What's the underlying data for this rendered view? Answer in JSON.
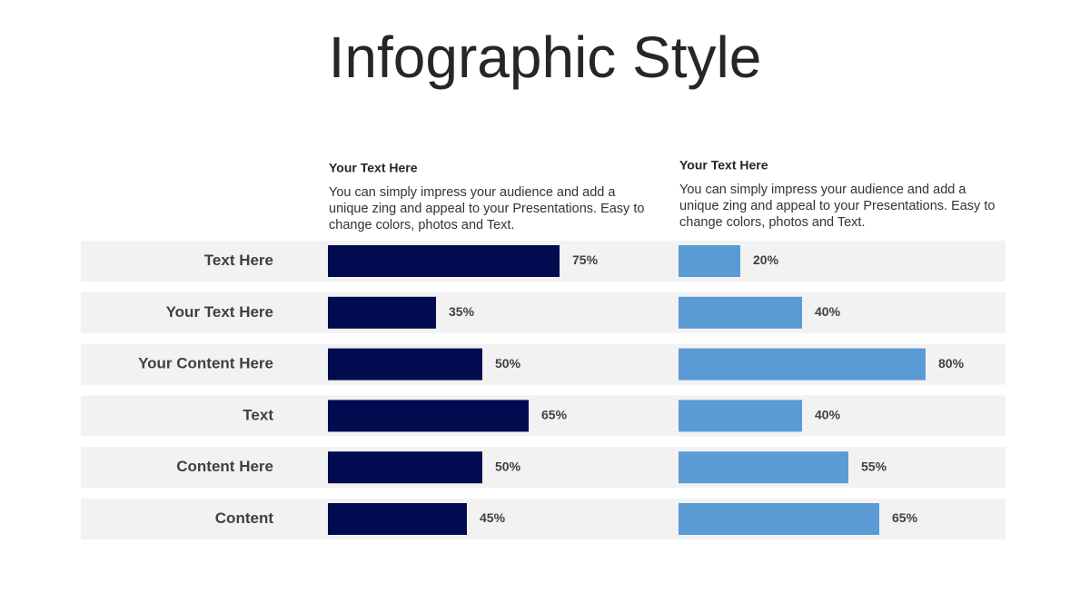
{
  "chart_data": {
    "type": "bar",
    "orientation": "horizontal",
    "title": "Infographic Style",
    "categories": [
      "Text Here",
      "Your Text Here",
      "Your Content  Here",
      "Text",
      "Content Here",
      "Content"
    ],
    "series": [
      {
        "name": "Your Text  Here",
        "description": "You can simply impress your audience and add a unique zing and appeal to your Presentations. Easy to change colors, photos and Text.",
        "color": "#000c4f",
        "values": [
          75,
          35,
          50,
          65,
          50,
          45
        ],
        "value_labels": [
          "75%",
          "35%",
          "50%",
          "65%",
          "50%",
          "45%"
        ]
      },
      {
        "name": "Your Text  Here",
        "description": "You can simply impress your audience and add a unique zing and appeal to your Presentations. Easy to change colors, photos and Text.",
        "color": "#5b9bd5",
        "values": [
          20,
          40,
          80,
          40,
          55,
          65
        ],
        "value_labels": [
          "20%",
          "40%",
          "80%",
          "40%",
          "55%",
          "65%"
        ]
      }
    ]
  }
}
